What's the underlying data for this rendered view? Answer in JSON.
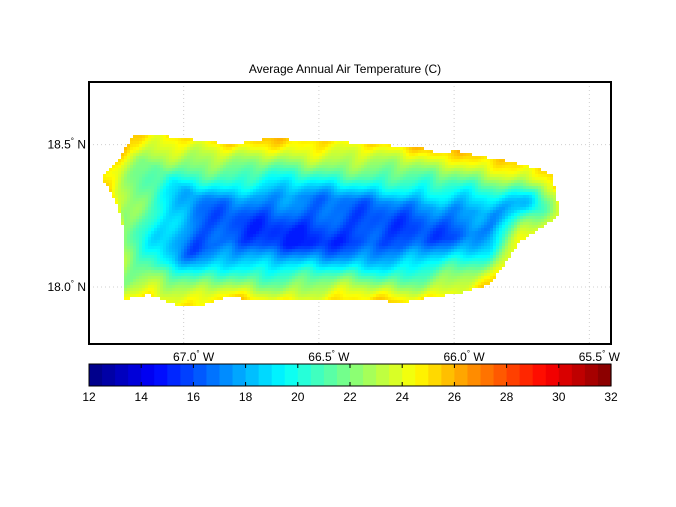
{
  "title": "Average Annual Air Temperature (C)",
  "map": {
    "region": "Puerto Rico",
    "projection": "lon/lat",
    "grid": true,
    "lon_range": [
      -67.35,
      -65.42
    ],
    "lat_range": [
      17.8,
      18.72
    ],
    "lon_ticks": [
      {
        "value": -67.0,
        "num": "67.0",
        "deg": "°",
        "hemi": "W"
      },
      {
        "value": -66.5,
        "num": "66.5",
        "deg": "°",
        "hemi": "W"
      },
      {
        "value": -66.0,
        "num": "66.0",
        "deg": "°",
        "hemi": "W"
      },
      {
        "value": -65.5,
        "num": "65.5",
        "deg": "°",
        "hemi": "W"
      }
    ],
    "lat_ticks": [
      {
        "value": 18.5,
        "num": "18.5",
        "deg": "°",
        "hemi": "N"
      },
      {
        "value": 18.0,
        "num": "18.0",
        "deg": "°",
        "hemi": "N"
      }
    ],
    "coldest_zone": {
      "lon": -66.53,
      "lat": 18.17,
      "value_c": 15
    },
    "coastal_value_c": 25
  },
  "colorbar": {
    "colormap": "jet",
    "orientation": "horizontal",
    "min": 12,
    "max": 32,
    "levels": 40,
    "ticks": [
      "12",
      "14",
      "16",
      "18",
      "20",
      "22",
      "24",
      "26",
      "28",
      "30",
      "32"
    ]
  }
}
